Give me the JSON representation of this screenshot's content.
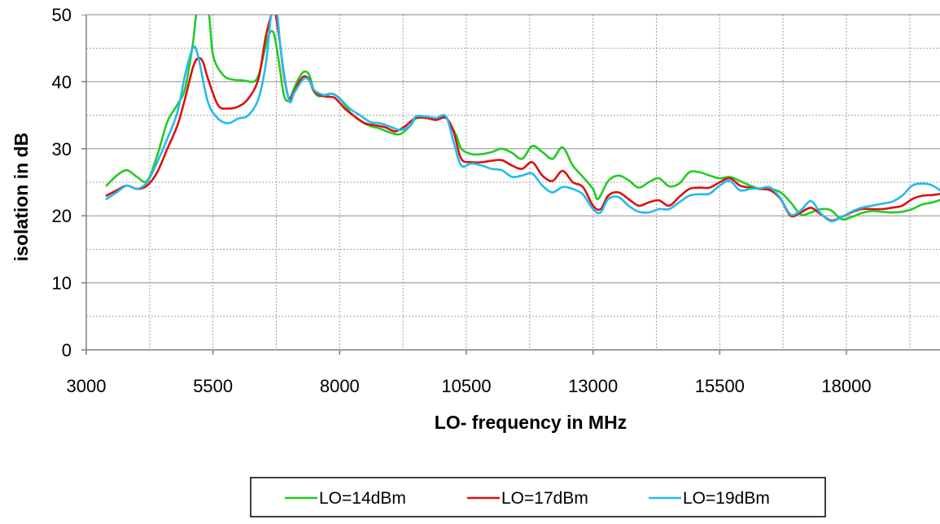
{
  "chart_data": {
    "type": "line",
    "title": "",
    "xlabel": "LO- frequency in MHz",
    "ylabel": "isolation in dB",
    "xlim": [
      3000,
      20000
    ],
    "ylim": [
      0,
      50
    ],
    "x_ticks": [
      3000,
      5500,
      8000,
      10500,
      13000,
      15500,
      18000
    ],
    "x_tick_labels": [
      "3000",
      "5500",
      "8000",
      "10500",
      "13000",
      "15500",
      "18000"
    ],
    "x_minor_step": 1250,
    "y_ticks": [
      0,
      10,
      20,
      30,
      40,
      50
    ],
    "y_tick_labels": [
      "0",
      "10",
      "20",
      "30",
      "40",
      "50"
    ],
    "y_minor_step": 5,
    "grid": true,
    "legend_position": "bottom-center",
    "series": [
      {
        "name": "LO=14dBm",
        "color": "#22cc22",
        "points": [
          [
            3400,
            24.5
          ],
          [
            3600,
            26
          ],
          [
            3800,
            26.8
          ],
          [
            4000,
            25.8
          ],
          [
            4200,
            25.2
          ],
          [
            4400,
            29
          ],
          [
            4600,
            34
          ],
          [
            4800,
            36.6
          ],
          [
            4950,
            39
          ],
          [
            5100,
            45.5
          ],
          [
            5200,
            51
          ],
          [
            5400,
            51
          ],
          [
            5500,
            44
          ],
          [
            5700,
            41
          ],
          [
            5900,
            40.3
          ],
          [
            6100,
            40.2
          ],
          [
            6300,
            40
          ],
          [
            6400,
            41
          ],
          [
            6500,
            44
          ],
          [
            6600,
            47
          ],
          [
            6700,
            47.2
          ],
          [
            6800,
            43
          ],
          [
            6900,
            38
          ],
          [
            7000,
            37.2
          ],
          [
            7100,
            39
          ],
          [
            7200,
            40.6
          ],
          [
            7300,
            41.5
          ],
          [
            7400,
            41
          ],
          [
            7500,
            38.5
          ],
          [
            7600,
            37.8
          ],
          [
            7700,
            38
          ],
          [
            7850,
            38.2
          ],
          [
            8000,
            37.5
          ],
          [
            8200,
            35.5
          ],
          [
            8400,
            34.2
          ],
          [
            8600,
            33.4
          ],
          [
            8800,
            33
          ],
          [
            9000,
            32.4
          ],
          [
            9200,
            32.2
          ],
          [
            9400,
            33.5
          ],
          [
            9500,
            34.5
          ],
          [
            9700,
            34.6
          ],
          [
            9900,
            34.4
          ],
          [
            10100,
            34.6
          ],
          [
            10300,
            32
          ],
          [
            10400,
            30
          ],
          [
            10600,
            29.2
          ],
          [
            10800,
            29.2
          ],
          [
            11000,
            29.5
          ],
          [
            11200,
            30
          ],
          [
            11400,
            29.4
          ],
          [
            11600,
            28.5
          ],
          [
            11800,
            30.4
          ],
          [
            12000,
            29.5
          ],
          [
            12200,
            28.5
          ],
          [
            12400,
            30.2
          ],
          [
            12600,
            27.5
          ],
          [
            12800,
            25.8
          ],
          [
            13000,
            24
          ],
          [
            13100,
            22.5
          ],
          [
            13300,
            25.2
          ],
          [
            13500,
            26
          ],
          [
            13700,
            25.3
          ],
          [
            13900,
            24.2
          ],
          [
            14100,
            25
          ],
          [
            14300,
            25.6
          ],
          [
            14500,
            24.4
          ],
          [
            14700,
            24.8
          ],
          [
            14900,
            26.5
          ],
          [
            15100,
            26.5
          ],
          [
            15300,
            26
          ],
          [
            15500,
            25.6
          ],
          [
            15700,
            25.8
          ],
          [
            15900,
            25.2
          ],
          [
            16100,
            24.5
          ],
          [
            16300,
            24
          ],
          [
            16500,
            24
          ],
          [
            16700,
            23.5
          ],
          [
            16900,
            22
          ],
          [
            17100,
            20.2
          ],
          [
            17300,
            20.5
          ],
          [
            17500,
            21
          ],
          [
            17700,
            20.8
          ],
          [
            17900,
            19.5
          ],
          [
            18100,
            19.8
          ],
          [
            18300,
            20.4
          ],
          [
            18500,
            20.7
          ],
          [
            18700,
            20.6
          ],
          [
            18900,
            20.5
          ],
          [
            19100,
            20.6
          ],
          [
            19300,
            21
          ],
          [
            19500,
            21.7
          ],
          [
            19700,
            22
          ],
          [
            19900,
            22.5
          ]
        ]
      },
      {
        "name": "LO=17dBm",
        "color": "#dd1111",
        "points": [
          [
            3400,
            23
          ],
          [
            3600,
            23.8
          ],
          [
            3800,
            24.5
          ],
          [
            4000,
            24
          ],
          [
            4200,
            24.5
          ],
          [
            4400,
            26.5
          ],
          [
            4600,
            30
          ],
          [
            4800,
            33.5
          ],
          [
            4950,
            37.5
          ],
          [
            5100,
            42
          ],
          [
            5200,
            43.5
          ],
          [
            5300,
            43
          ],
          [
            5400,
            40.5
          ],
          [
            5600,
            36.5
          ],
          [
            5800,
            36
          ],
          [
            6000,
            36.3
          ],
          [
            6200,
            37.5
          ],
          [
            6400,
            40.5
          ],
          [
            6550,
            47
          ],
          [
            6700,
            50.5
          ],
          [
            6800,
            47
          ],
          [
            6900,
            41
          ],
          [
            7000,
            37.5
          ],
          [
            7100,
            38.5
          ],
          [
            7200,
            40
          ],
          [
            7300,
            40.8
          ],
          [
            7400,
            40.3
          ],
          [
            7500,
            38.5
          ],
          [
            7700,
            37.8
          ],
          [
            7900,
            37.6
          ],
          [
            8100,
            36
          ],
          [
            8300,
            34.8
          ],
          [
            8500,
            33.8
          ],
          [
            8700,
            33.5
          ],
          [
            8900,
            33.2
          ],
          [
            9100,
            32.6
          ],
          [
            9300,
            33.4
          ],
          [
            9500,
            34.6
          ],
          [
            9700,
            34.6
          ],
          [
            9900,
            34.3
          ],
          [
            10100,
            34.6
          ],
          [
            10250,
            32.5
          ],
          [
            10400,
            28.5
          ],
          [
            10600,
            28
          ],
          [
            10800,
            28
          ],
          [
            11000,
            28.2
          ],
          [
            11200,
            28.3
          ],
          [
            11400,
            27.5
          ],
          [
            11600,
            27
          ],
          [
            11800,
            28
          ],
          [
            12000,
            26
          ],
          [
            12200,
            25.2
          ],
          [
            12400,
            26.7
          ],
          [
            12600,
            25
          ],
          [
            12800,
            24.3
          ],
          [
            13000,
            21.5
          ],
          [
            13150,
            21
          ],
          [
            13300,
            23
          ],
          [
            13500,
            23.5
          ],
          [
            13700,
            22.5
          ],
          [
            13900,
            21.5
          ],
          [
            14100,
            22
          ],
          [
            14300,
            22.3
          ],
          [
            14500,
            21.5
          ],
          [
            14700,
            22.8
          ],
          [
            14900,
            24
          ],
          [
            15100,
            24.2
          ],
          [
            15300,
            24.2
          ],
          [
            15500,
            25
          ],
          [
            15700,
            25.6
          ],
          [
            15900,
            24.5
          ],
          [
            16100,
            24.2
          ],
          [
            16300,
            24
          ],
          [
            16500,
            23.8
          ],
          [
            16700,
            22.5
          ],
          [
            16900,
            20
          ],
          [
            17100,
            20.5
          ],
          [
            17300,
            21.2
          ],
          [
            17500,
            20.2
          ],
          [
            17700,
            19.3
          ],
          [
            17900,
            19.8
          ],
          [
            18100,
            20.5
          ],
          [
            18300,
            21
          ],
          [
            18500,
            21
          ],
          [
            18700,
            21
          ],
          [
            18900,
            21.2
          ],
          [
            19100,
            21.5
          ],
          [
            19300,
            22.5
          ],
          [
            19500,
            23
          ],
          [
            19700,
            23.1
          ],
          [
            19900,
            23.3
          ]
        ]
      },
      {
        "name": "LO=19dBm",
        "color": "#22bbee",
        "points": [
          [
            3400,
            22.5
          ],
          [
            3600,
            23.5
          ],
          [
            3800,
            24.5
          ],
          [
            4000,
            24
          ],
          [
            4200,
            25
          ],
          [
            4400,
            28
          ],
          [
            4600,
            31.5
          ],
          [
            4800,
            35.5
          ],
          [
            4950,
            41
          ],
          [
            5100,
            45
          ],
          [
            5200,
            44
          ],
          [
            5400,
            37
          ],
          [
            5600,
            34.5
          ],
          [
            5800,
            33.8
          ],
          [
            6000,
            34.5
          ],
          [
            6200,
            35
          ],
          [
            6400,
            37.5
          ],
          [
            6550,
            43
          ],
          [
            6650,
            50
          ],
          [
            6750,
            51
          ],
          [
            6850,
            44
          ],
          [
            7000,
            37.2
          ],
          [
            7100,
            38.3
          ],
          [
            7200,
            39.5
          ],
          [
            7300,
            40.5
          ],
          [
            7400,
            40.2
          ],
          [
            7500,
            38.7
          ],
          [
            7700,
            38
          ],
          [
            7850,
            38.2
          ],
          [
            8000,
            37.5
          ],
          [
            8200,
            36
          ],
          [
            8400,
            35
          ],
          [
            8600,
            34
          ],
          [
            8800,
            33.8
          ],
          [
            9000,
            33.3
          ],
          [
            9200,
            32.8
          ],
          [
            9400,
            33.5
          ],
          [
            9500,
            34.8
          ],
          [
            9700,
            34.8
          ],
          [
            9900,
            34.6
          ],
          [
            10100,
            34.8
          ],
          [
            10250,
            31
          ],
          [
            10400,
            27.5
          ],
          [
            10600,
            27.8
          ],
          [
            10800,
            27.5
          ],
          [
            11000,
            27
          ],
          [
            11200,
            26.8
          ],
          [
            11400,
            25.8
          ],
          [
            11600,
            26
          ],
          [
            11800,
            26.3
          ],
          [
            12000,
            24.5
          ],
          [
            12200,
            23.5
          ],
          [
            12400,
            24.3
          ],
          [
            12600,
            24
          ],
          [
            12800,
            23.2
          ],
          [
            13000,
            21
          ],
          [
            13150,
            20.5
          ],
          [
            13300,
            22.5
          ],
          [
            13500,
            22.8
          ],
          [
            13700,
            21.5
          ],
          [
            13900,
            20.6
          ],
          [
            14100,
            20.5
          ],
          [
            14300,
            21
          ],
          [
            14500,
            21
          ],
          [
            14700,
            22
          ],
          [
            14900,
            23
          ],
          [
            15100,
            23.2
          ],
          [
            15300,
            23.3
          ],
          [
            15500,
            24.5
          ],
          [
            15700,
            25.2
          ],
          [
            15900,
            23.8
          ],
          [
            16100,
            24
          ],
          [
            16300,
            24.1
          ],
          [
            16500,
            24.2
          ],
          [
            16700,
            22.6
          ],
          [
            16900,
            20.2
          ],
          [
            17100,
            20.8
          ],
          [
            17300,
            22.2
          ],
          [
            17500,
            20.3
          ],
          [
            17700,
            19.2
          ],
          [
            17900,
            19.8
          ],
          [
            18100,
            20.6
          ],
          [
            18300,
            21.2
          ],
          [
            18500,
            21.5
          ],
          [
            18700,
            21.8
          ],
          [
            18900,
            22.1
          ],
          [
            19100,
            23
          ],
          [
            19300,
            24.5
          ],
          [
            19500,
            24.8
          ],
          [
            19700,
            24.5
          ],
          [
            19900,
            23.5
          ]
        ]
      }
    ]
  }
}
